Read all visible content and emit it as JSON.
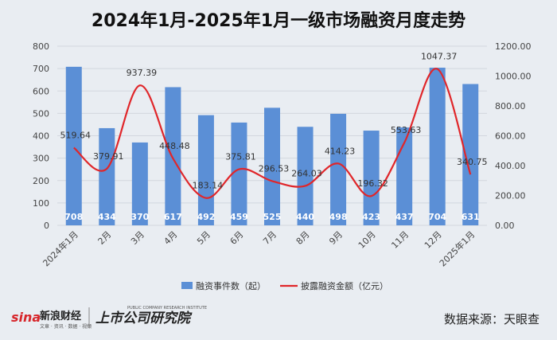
{
  "title": "2024年1月-2025年1月一级市场融资月度走势",
  "source_text": "数据来源：天眼查",
  "brand": {
    "sina": "sina",
    "sina_cn": "新浪财经",
    "sina_sub": "文章 · 资讯 · 数据 · 视频",
    "institute_cn": "上市公司研究院",
    "institute_en": "PUBLIC COMPANY RESEARCH INSTITUTE"
  },
  "colors": {
    "bar": "#5b8fd6",
    "line": "#e0262a",
    "background": "#e9edf2",
    "grid": "#d2d7de",
    "brand_red": "#d7262b"
  },
  "chart_data": {
    "type": "bar",
    "categories": [
      "2024年1月",
      "2月",
      "3月",
      "4月",
      "5月",
      "6月",
      "7月",
      "8月",
      "9月",
      "10月",
      "11月",
      "12月",
      "2025年1月"
    ],
    "series": [
      {
        "name": "融资事件数（起）",
        "type": "bar",
        "axis": "left",
        "values": [
          708,
          434,
          370,
          617,
          492,
          459,
          525,
          440,
          498,
          423,
          437,
          704,
          631
        ],
        "labels": [
          "708",
          "434",
          "370",
          "617",
          "492",
          "459",
          "525",
          "440",
          "498",
          "423",
          "437",
          "704",
          "631"
        ]
      },
      {
        "name": "披露融资金额（亿元）",
        "type": "line",
        "smooth": true,
        "axis": "right",
        "values": [
          519.64,
          379.91,
          937.39,
          448.48,
          183.14,
          375.81,
          296.53,
          264.03,
          414.23,
          196.32,
          553.63,
          1047.37,
          340.75
        ],
        "labels": [
          "519.64",
          "379.91",
          "937.39",
          "448.48",
          "183.14",
          "375.81",
          "296.53",
          "264.03",
          "414.23",
          "196.32",
          "553.63",
          "1047.37",
          "340.75"
        ]
      }
    ],
    "y_left": {
      "ylim": [
        0,
        800
      ],
      "ticks": [
        "0",
        "100",
        "200",
        "300",
        "400",
        "500",
        "600",
        "700",
        "800"
      ]
    },
    "y_right": {
      "ylim": [
        0,
        1200
      ],
      "ticks": [
        "0.00",
        "200.00",
        "400.00",
        "600.00",
        "800.00",
        "1000.00",
        "1200.00"
      ]
    },
    "grid": true,
    "legend_position": "bottom"
  }
}
